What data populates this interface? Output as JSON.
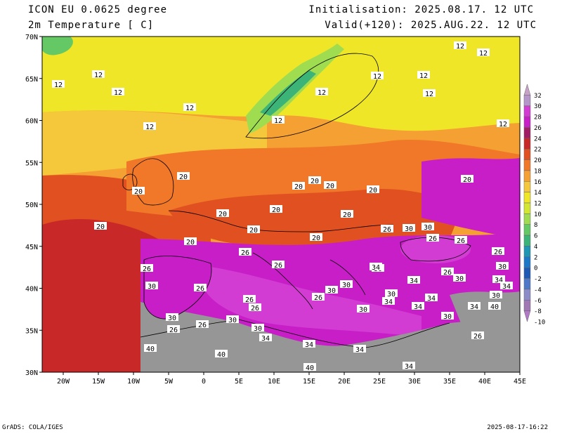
{
  "header": {
    "model": "ICON EU 0.0625 degree",
    "variable": "2m Temperature [ C]",
    "init": "Initialisation: 2025.08.17. 12 UTC",
    "valid": "Valid(+120): 2025.AUG.22. 12 UTC"
  },
  "axes": {
    "lat_labels": [
      "70N",
      "65N",
      "60N",
      "55N",
      "50N",
      "45N",
      "40N",
      "35N",
      "30N"
    ],
    "lon_labels": [
      "20W",
      "15W",
      "10W",
      "5W",
      "0",
      "5E",
      "10E",
      "15E",
      "20E",
      "25E",
      "30E",
      "35E",
      "40E",
      "45E"
    ],
    "lat_range": [
      30,
      70
    ],
    "lon_range": [
      -23,
      45
    ]
  },
  "colorbar": {
    "labels": [
      "32",
      "30",
      "28",
      "26",
      "24",
      "22",
      "20",
      "18",
      "16",
      "14",
      "12",
      "10",
      "8",
      "6",
      "4",
      "2",
      "0",
      "-2",
      "-4",
      "-6",
      "-8",
      "-10"
    ],
    "colors": [
      "#c8a0c8",
      "#b496c8",
      "#d23cd2",
      "#c81ec8",
      "#a01e64",
      "#c82828",
      "#e05020",
      "#f07828",
      "#f5a032",
      "#f5c83c",
      "#f0e628",
      "#d2e632",
      "#a0dc50",
      "#64c864",
      "#3cb478",
      "#1e96b4",
      "#1e78c8",
      "#1e5ab4",
      "#5078c8",
      "#8c8cc8",
      "#a078b4",
      "#b478c8"
    ]
  },
  "contour_labels": [
    "12",
    "12",
    "12",
    "12",
    "12",
    "12",
    "12",
    "12",
    "12",
    "12",
    "12",
    "12",
    "12",
    "20",
    "20",
    "20",
    "20",
    "20",
    "20",
    "20",
    "20",
    "20",
    "20",
    "20",
    "20",
    "20",
    "20",
    "26",
    "26",
    "26",
    "26",
    "26",
    "26",
    "26",
    "26",
    "26",
    "26",
    "26",
    "26",
    "26",
    "26",
    "30",
    "30",
    "30",
    "30",
    "30",
    "30",
    "30",
    "30",
    "30",
    "30",
    "30",
    "30",
    "30",
    "30",
    "34",
    "34",
    "34",
    "34",
    "34",
    "34",
    "34",
    "34",
    "34",
    "34",
    "34",
    "40",
    "40",
    "40",
    "40",
    "26",
    "30",
    "34"
  ],
  "footer": {
    "left": "GrADS: COLA/IGES",
    "right": "2025-08-17-16:22"
  }
}
